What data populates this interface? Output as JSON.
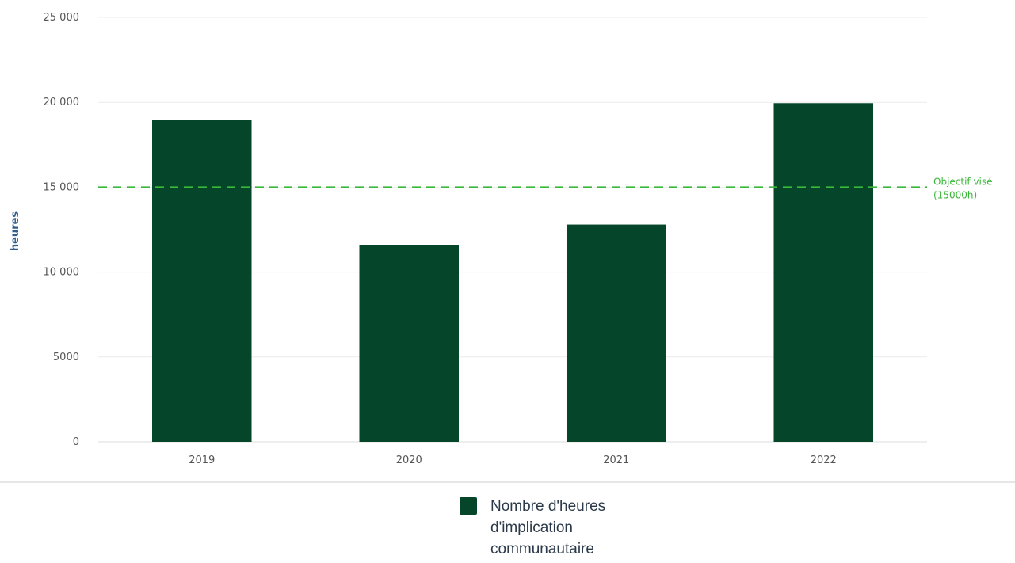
{
  "chart_data": {
    "type": "bar",
    "categories": [
      "2019",
      "2020",
      "2021",
      "2022"
    ],
    "series": [
      {
        "name": "Nombre d'heures d'implication communautaire",
        "values": [
          18950,
          11600,
          12800,
          19950
        ],
        "color": "#05452a"
      }
    ],
    "ylabel": "heures",
    "ylim": [
      0,
      25000
    ],
    "yticks": [
      0,
      5000,
      10000,
      15000,
      20000,
      25000
    ],
    "ytick_labels": [
      "0",
      "5000",
      "10 000",
      "15 000",
      "20 000",
      "25 000"
    ],
    "grid": true,
    "reference_line": {
      "value": 15000,
      "label_lines": [
        "Objectif visé",
        "(15000h)"
      ],
      "color": "#3ab83a",
      "style": "dashed"
    },
    "legend_position": "bottom"
  },
  "legend": {
    "lines": [
      "Nombre d'heures",
      "d'implication",
      "communautaire"
    ]
  },
  "colors": {
    "bar": "#05452a",
    "grid": "#ececec",
    "target": "#3ab83a",
    "axis_title": "#2f5d8c"
  }
}
